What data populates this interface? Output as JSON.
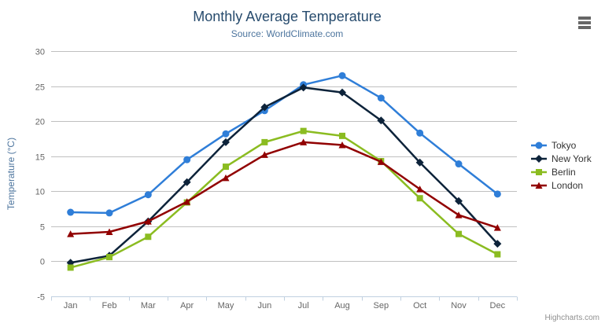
{
  "chart_data": {
    "type": "line",
    "title": "Monthly Average Temperature",
    "subtitle": "Source: WorldClimate.com",
    "categories": [
      "Jan",
      "Feb",
      "Mar",
      "Apr",
      "May",
      "Jun",
      "Jul",
      "Aug",
      "Sep",
      "Oct",
      "Nov",
      "Dec"
    ],
    "xlabel": "",
    "ylabel": "Temperature (°C)",
    "ylim": [
      -5,
      30
    ],
    "ytick_step": 5,
    "grid": true,
    "legend_position": "right",
    "series": [
      {
        "name": "Tokyo",
        "color": "#2f7ed8",
        "marker": "circle",
        "values": [
          7.0,
          6.9,
          9.5,
          14.5,
          18.2,
          21.5,
          25.2,
          26.5,
          23.3,
          18.3,
          13.9,
          9.6
        ]
      },
      {
        "name": "New York",
        "color": "#0d233a",
        "marker": "diamond",
        "values": [
          -0.2,
          0.8,
          5.7,
          11.3,
          17.0,
          22.0,
          24.8,
          24.1,
          20.1,
          14.1,
          8.6,
          2.5
        ]
      },
      {
        "name": "Berlin",
        "color": "#8bbc21",
        "marker": "square",
        "values": [
          -0.9,
          0.6,
          3.5,
          8.4,
          13.5,
          17.0,
          18.6,
          17.9,
          14.3,
          9.0,
          3.9,
          1.0
        ]
      },
      {
        "name": "London",
        "color": "#910000",
        "marker": "triangle",
        "values": [
          3.9,
          4.2,
          5.7,
          8.5,
          11.9,
          15.2,
          17.0,
          16.6,
          14.2,
          10.3,
          6.6,
          4.8
        ]
      }
    ]
  },
  "credits": "Highcharts.com",
  "colors": {
    "title": "#274b6d",
    "subtitle": "#4d759e",
    "axis_label": "#666666",
    "grid_line": "#c0c0c0",
    "axis_line": "#c0d0e0",
    "legend_text": "#333333",
    "credits": "#909090",
    "menu_icon": "#666666"
  }
}
